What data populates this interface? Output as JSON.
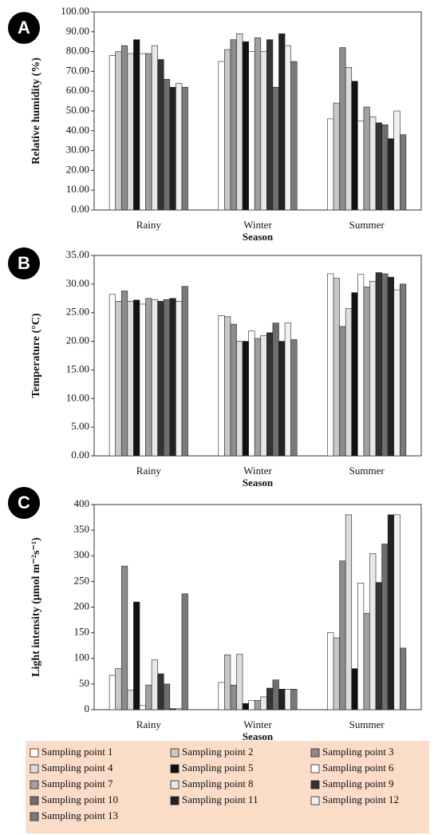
{
  "chart_data": [
    {
      "type": "bar",
      "panel": "A",
      "ylabel": "Relative humidity (%)",
      "xlabel": "Season",
      "categories": [
        "Rainy",
        "Winter",
        "Summer"
      ],
      "ylim": [
        0,
        100
      ],
      "yticks": [
        {
          "value": 0,
          "label": "0.00"
        },
        {
          "value": 10,
          "label": "10.00"
        },
        {
          "value": 20,
          "label": "20.00"
        },
        {
          "value": 30,
          "label": "30.00"
        },
        {
          "value": 40,
          "label": "40.00"
        },
        {
          "value": 50,
          "label": "50.00"
        },
        {
          "value": 60,
          "label": "60.00"
        },
        {
          "value": 70,
          "label": "70.00"
        },
        {
          "value": 80,
          "label": "80.00"
        },
        {
          "value": 90,
          "label": "90.00"
        },
        {
          "value": 100,
          "label": "100.00"
        }
      ],
      "series": [
        {
          "name": "Sampling point 1",
          "color": "#ffffff",
          "values": [
            78,
            75,
            46
          ]
        },
        {
          "name": "Sampling point 2",
          "color": "#c8c8c8",
          "values": [
            80,
            81,
            54
          ]
        },
        {
          "name": "Sampling point 3",
          "color": "#8c8c8c",
          "values": [
            83,
            86,
            82
          ]
        },
        {
          "name": "Sampling point 4",
          "color": "#dcdcdc",
          "values": [
            79,
            89,
            72
          ]
        },
        {
          "name": "Sampling point 5",
          "color": "#111111",
          "values": [
            86,
            85,
            65
          ]
        },
        {
          "name": "Sampling point 6",
          "color": "#ffffff",
          "values": [
            79,
            80,
            45
          ]
        },
        {
          "name": "Sampling point 7",
          "color": "#a0a0a0",
          "values": [
            79,
            87,
            52
          ]
        },
        {
          "name": "Sampling point 8",
          "color": "#e8e8e8",
          "values": [
            83,
            80,
            47
          ]
        },
        {
          "name": "Sampling point 9",
          "color": "#333333",
          "values": [
            76,
            86,
            44
          ]
        },
        {
          "name": "Sampling point 10",
          "color": "#6e6e6e",
          "values": [
            66,
            62,
            43
          ]
        },
        {
          "name": "Sampling point 11",
          "color": "#222222",
          "values": [
            62,
            89,
            36
          ]
        },
        {
          "name": "Sampling point 12",
          "color": "#f0f0f0",
          "values": [
            64,
            83,
            50
          ]
        },
        {
          "name": "Sampling point 13",
          "color": "#7a7a7a",
          "values": [
            62,
            75,
            38
          ]
        }
      ]
    },
    {
      "type": "bar",
      "panel": "B",
      "ylabel": "Temperature (°C)",
      "xlabel": "Season",
      "categories": [
        "Rainy",
        "Winter",
        "Summer"
      ],
      "ylim": [
        0,
        35
      ],
      "yticks": [
        {
          "value": 0,
          "label": "0.00"
        },
        {
          "value": 5,
          "label": "5.00"
        },
        {
          "value": 10,
          "label": "10.00"
        },
        {
          "value": 15,
          "label": "15.00"
        },
        {
          "value": 20,
          "label": "20.00"
        },
        {
          "value": 25,
          "label": "25.00"
        },
        {
          "value": 30,
          "label": "30.00"
        },
        {
          "value": 35,
          "label": "35.00"
        }
      ],
      "series": [
        {
          "values": [
            28.2,
            24.5,
            31.8
          ]
        },
        {
          "values": [
            27,
            24.3,
            31
          ]
        },
        {
          "values": [
            28.8,
            23,
            22.6
          ]
        },
        {
          "values": [
            27,
            20,
            25.7
          ]
        },
        {
          "values": [
            27.2,
            20,
            28.5
          ]
        },
        {
          "values": [
            26.5,
            21.8,
            31.7
          ]
        },
        {
          "values": [
            27.5,
            20.5,
            29.5
          ]
        },
        {
          "values": [
            27.3,
            21,
            30.5
          ]
        },
        {
          "values": [
            27,
            21.5,
            32
          ]
        },
        {
          "values": [
            27.3,
            23.2,
            31.8
          ]
        },
        {
          "values": [
            27.5,
            20,
            31.2
          ]
        },
        {
          "values": [
            27,
            23.2,
            29
          ]
        },
        {
          "values": [
            29.6,
            20.3,
            30
          ]
        }
      ]
    },
    {
      "type": "bar",
      "panel": "C",
      "ylabel": "Light intensity (μmol m⁻²s⁻¹)",
      "xlabel": "Season",
      "categories": [
        "Rainy",
        "Winter",
        "Summer"
      ],
      "ylim": [
        0,
        400
      ],
      "yticks": [
        0,
        50,
        100,
        150,
        200,
        250,
        300,
        350,
        400
      ],
      "series": [
        {
          "values": [
            67,
            53,
            150
          ]
        },
        {
          "values": [
            80,
            107,
            140
          ]
        },
        {
          "values": [
            280,
            48,
            290
          ]
        },
        {
          "values": [
            38,
            108,
            380
          ]
        },
        {
          "values": [
            210,
            12,
            80
          ]
        },
        {
          "values": [
            8,
            18,
            247
          ]
        },
        {
          "values": [
            48,
            18,
            188
          ]
        },
        {
          "values": [
            97,
            25,
            304
          ]
        },
        {
          "values": [
            70,
            42,
            248
          ]
        },
        {
          "values": [
            50,
            58,
            323
          ]
        },
        {
          "values": [
            2,
            40,
            380
          ]
        },
        {
          "values": [
            2,
            40,
            380
          ]
        },
        {
          "values": [
            226,
            40,
            120
          ]
        }
      ]
    }
  ]
}
